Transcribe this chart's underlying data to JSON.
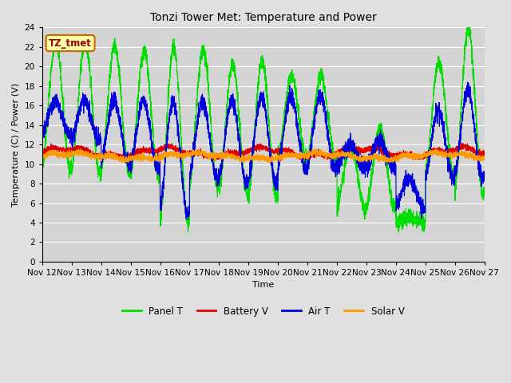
{
  "title": "Tonzi Tower Met: Temperature and Power",
  "xlabel": "Time",
  "ylabel": "Temperature (C) / Power (V)",
  "ylim": [
    0,
    24
  ],
  "yticks": [
    0,
    2,
    4,
    6,
    8,
    10,
    12,
    14,
    16,
    18,
    20,
    22,
    24
  ],
  "xtick_labels": [
    "Nov 12",
    "Nov 13",
    "Nov 14",
    "Nov 15",
    "Nov 16",
    "Nov 17",
    "Nov 18",
    "Nov 19",
    "Nov 20",
    "Nov 21",
    "Nov 22",
    "Nov 23",
    "Nov 24",
    "Nov 25",
    "Nov 26",
    "Nov 27"
  ],
  "legend_labels": [
    "Panel T",
    "Battery V",
    "Air T",
    "Solar V"
  ],
  "panel_color": "#00dd00",
  "battery_color": "#dd0000",
  "air_color": "#0000dd",
  "solar_color": "#ff9900",
  "bg_color": "#e0e0e0",
  "plot_bg_color": "#d4d4d4",
  "annotation_text": "TZ_tmet",
  "annotation_bg": "#ffffaa",
  "annotation_border": "#cc6600",
  "annotation_text_color": "#990000"
}
